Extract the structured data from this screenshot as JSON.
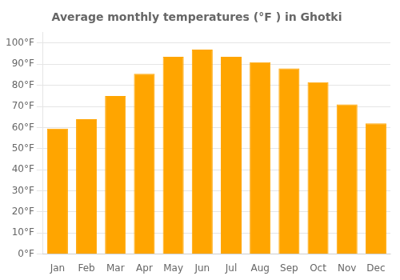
{
  "chart_data": {
    "type": "bar",
    "title": "Average monthly temperatures (°F ) in Ghotki",
    "categories": [
      "Jan",
      "Feb",
      "Mar",
      "Apr",
      "May",
      "Jun",
      "Jul",
      "Aug",
      "Sep",
      "Oct",
      "Nov",
      "Dec"
    ],
    "values": [
      59.5,
      64.0,
      75.0,
      85.5,
      93.5,
      97.0,
      93.5,
      91.0,
      88.0,
      81.5,
      71.0,
      62.0
    ],
    "color": "#FFA500",
    "ylim": [
      0,
      105
    ],
    "yticks": [
      {
        "value": 0,
        "label": "0°F"
      },
      {
        "value": 10,
        "label": "10°F"
      },
      {
        "value": 20,
        "label": "20°F"
      },
      {
        "value": 30,
        "label": "30°F"
      },
      {
        "value": 40,
        "label": "40°F"
      },
      {
        "value": 50,
        "label": "50°F"
      },
      {
        "value": 60,
        "label": "60°F"
      },
      {
        "value": 70,
        "label": "70°F"
      },
      {
        "value": 80,
        "label": "80°F"
      },
      {
        "value": 90,
        "label": "90°F"
      },
      {
        "value": 100,
        "label": "100°F"
      }
    ],
    "grid": true
  }
}
